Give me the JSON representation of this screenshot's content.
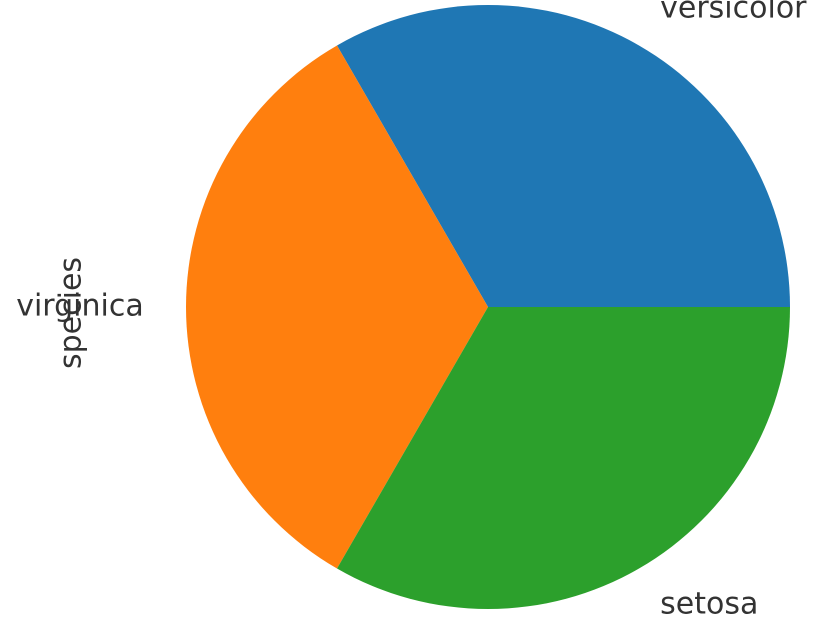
{
  "chart_data": {
    "type": "pie",
    "title": "",
    "ylabel": "species",
    "categories": [
      "versicolor",
      "virginica",
      "setosa"
    ],
    "values": [
      50,
      50,
      50
    ],
    "colors": [
      "#1f77b4",
      "#ff7f0e",
      "#2ca02c"
    ],
    "start_angle_deg": 0,
    "direction": "counterclockwise",
    "legend": "none"
  }
}
